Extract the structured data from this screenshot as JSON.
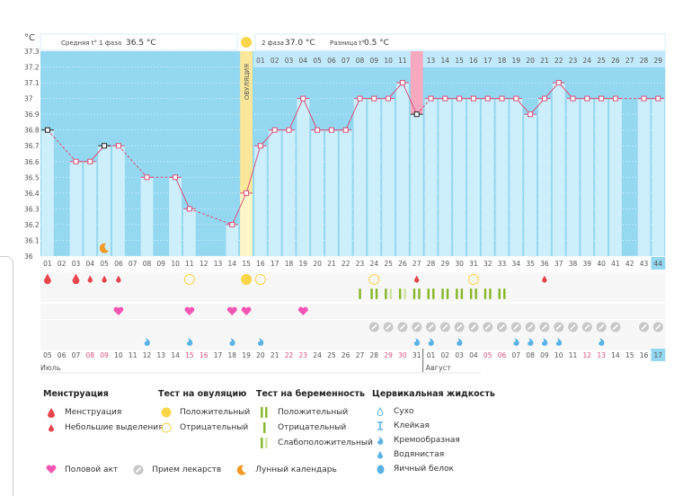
{
  "header": {
    "unit": "°C",
    "phase1_label": "Средняя t° 1 фаза",
    "phase1_value": "36.5 °C",
    "phase2_label": "2 фаза",
    "phase2_value": "37.0 °C",
    "diff_label": "Разница t°",
    "diff_value": "0.5 °C",
    "ovulation_label": "ОВУЛЯЦИЯ"
  },
  "chart_data": {
    "type": "line",
    "title": "",
    "ylabel": "°C",
    "ylim": [
      36,
      37.3
    ],
    "yticks": [
      "36",
      "36.1",
      "36.2",
      "36.3",
      "36.4",
      "36.5",
      "36.6",
      "36.7",
      "36.8",
      "36.9",
      "37",
      "37.1",
      "37.2",
      "37.3"
    ],
    "cycle_days": [
      "01",
      "02",
      "03",
      "04",
      "05",
      "06",
      "07",
      "08",
      "09",
      "10",
      "11",
      "12",
      "13",
      "14",
      "15",
      "16",
      "17",
      "18",
      "19",
      "20",
      "21",
      "22",
      "23",
      "24",
      "25",
      "26",
      "27",
      "28",
      "29",
      "30",
      "31",
      "32",
      "33",
      "34",
      "35",
      "36",
      "37",
      "38",
      "39",
      "40",
      "41",
      "42",
      "43",
      "44"
    ],
    "phase2_days": [
      "01",
      "02",
      "03",
      "04",
      "05",
      "06",
      "07",
      "08",
      "09",
      "10",
      "11",
      "12",
      "13",
      "14",
      "15",
      "16",
      "17",
      "18",
      "19",
      "20",
      "21",
      "22",
      "23",
      "24",
      "25",
      "26",
      "27",
      "28",
      "29"
    ],
    "temperatures": [
      36.8,
      null,
      36.6,
      36.6,
      36.7,
      36.7,
      null,
      36.5,
      null,
      36.5,
      36.3,
      null,
      null,
      36.2,
      36.4,
      36.7,
      36.8,
      36.8,
      37.0,
      36.8,
      36.8,
      36.8,
      37.0,
      37.0,
      37.0,
      37.1,
      36.9,
      37.0,
      37.0,
      37.0,
      37.0,
      37.0,
      37.0,
      37.0,
      36.9,
      37.0,
      37.1,
      37.0,
      37.0,
      37.0,
      37.0,
      null,
      37.0,
      37.0
    ],
    "excluded_points": [
      1,
      5,
      27
    ],
    "ovulation_day": 15,
    "highlight_day": 27,
    "current_day": 44,
    "dates": [
      "05",
      "06",
      "07",
      "08",
      "09",
      "10",
      "11",
      "12",
      "13",
      "14",
      "15",
      "16",
      "17",
      "18",
      "19",
      "20",
      "21",
      "22",
      "23",
      "24",
      "25",
      "26",
      "27",
      "28",
      "29",
      "30",
      "31",
      "01",
      "02",
      "03",
      "04",
      "05",
      "06",
      "07",
      "08",
      "09",
      "10",
      "11",
      "12",
      "13",
      "14",
      "15",
      "16",
      "17"
    ],
    "weekend_dates": [
      4,
      5,
      11,
      12,
      18,
      19,
      25,
      26,
      32,
      33,
      39,
      40
    ],
    "months": [
      {
        "label": "Июль",
        "start": 1
      },
      {
        "label": "Август",
        "start": 28
      }
    ],
    "rows": {
      "menstruation": {
        "1": "big",
        "3": "big",
        "4": "small",
        "5": "small",
        "6": "small",
        "27": "small",
        "36": "small"
      },
      "ovulation_test": {
        "11": "neg",
        "15": "pos",
        "16": "neg",
        "24": "neg",
        "31": "neg"
      },
      "pregnancy_test": {
        "23": "neg",
        "24": "pos",
        "25": "weak",
        "26": "weak",
        "27": "pos",
        "28": "pos",
        "29": "pos",
        "30": "pos",
        "31": "pos",
        "32": "pos",
        "33": "pos"
      },
      "intercourse": [
        6,
        11,
        14,
        15,
        19
      ],
      "medication": [
        24,
        25,
        26,
        27,
        28,
        29,
        30,
        31,
        32,
        33,
        34,
        35,
        36,
        37,
        38,
        39,
        40,
        41,
        43,
        44
      ],
      "cervical": [
        8,
        11,
        14,
        16,
        27,
        28,
        30,
        34,
        35,
        36,
        37,
        40
      ],
      "moon": [
        5
      ]
    }
  },
  "legend": {
    "menstruation": {
      "title": "Менструация",
      "items": [
        "Менструация",
        "Небольшие выделения"
      ]
    },
    "ovulation": {
      "title": "Тест на овуляцию",
      "items": [
        "Положительный",
        "Отрицательный"
      ]
    },
    "pregnancy": {
      "title": "Тест на беременность",
      "items": [
        "Положительный",
        "Отрицательный",
        "Слабоположительный"
      ]
    },
    "cervical": {
      "title": "Цервикальная жидкость",
      "items": [
        "Сухо",
        "Клейкая",
        "Кремообразная",
        "Водянистая",
        "Яичный белок"
      ]
    },
    "other": [
      "Половой акт",
      "Прием лекарств",
      "Лунный календарь"
    ]
  },
  "colors": {
    "sky": "#94d7f0",
    "bar": "#cdeefb",
    "pink": "#d8527a",
    "ovu": "#fbe79a",
    "red": "#e8454c",
    "yellow": "#f9d54a",
    "green": "#8ab82c",
    "heart": "#f556b4",
    "gray": "#c8c8c8",
    "blue": "#5ab2e4",
    "moon": "#f09a23"
  }
}
